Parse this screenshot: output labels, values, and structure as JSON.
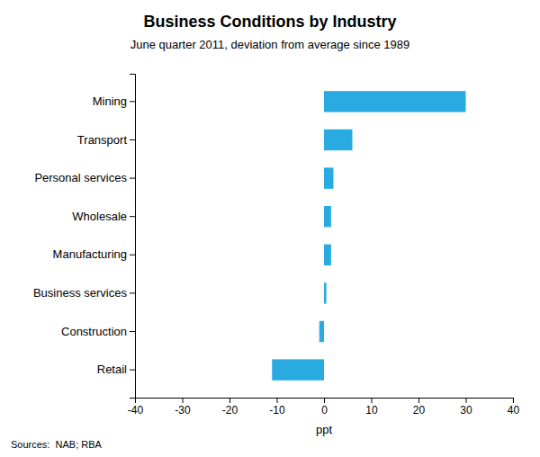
{
  "chart_data": {
    "type": "bar",
    "orientation": "horizontal",
    "title": "Business Conditions by Industry",
    "subtitle": "June quarter 2011, deviation from average since 1989",
    "categories": [
      "Mining",
      "Transport",
      "Personal services",
      "Wholesale",
      "Manufacturing",
      "Business services",
      "Construction",
      "Retail"
    ],
    "values": [
      30,
      6,
      2,
      1.5,
      1.5,
      0.5,
      -1,
      -11
    ],
    "color": "#29ABE2",
    "xlim": [
      -40,
      40
    ],
    "xticks": [
      -40,
      -30,
      -20,
      -10,
      0,
      10,
      20,
      30,
      40
    ],
    "xlabel": "ppt",
    "annotations": [
      "Sources:  NAB; RBA"
    ]
  }
}
